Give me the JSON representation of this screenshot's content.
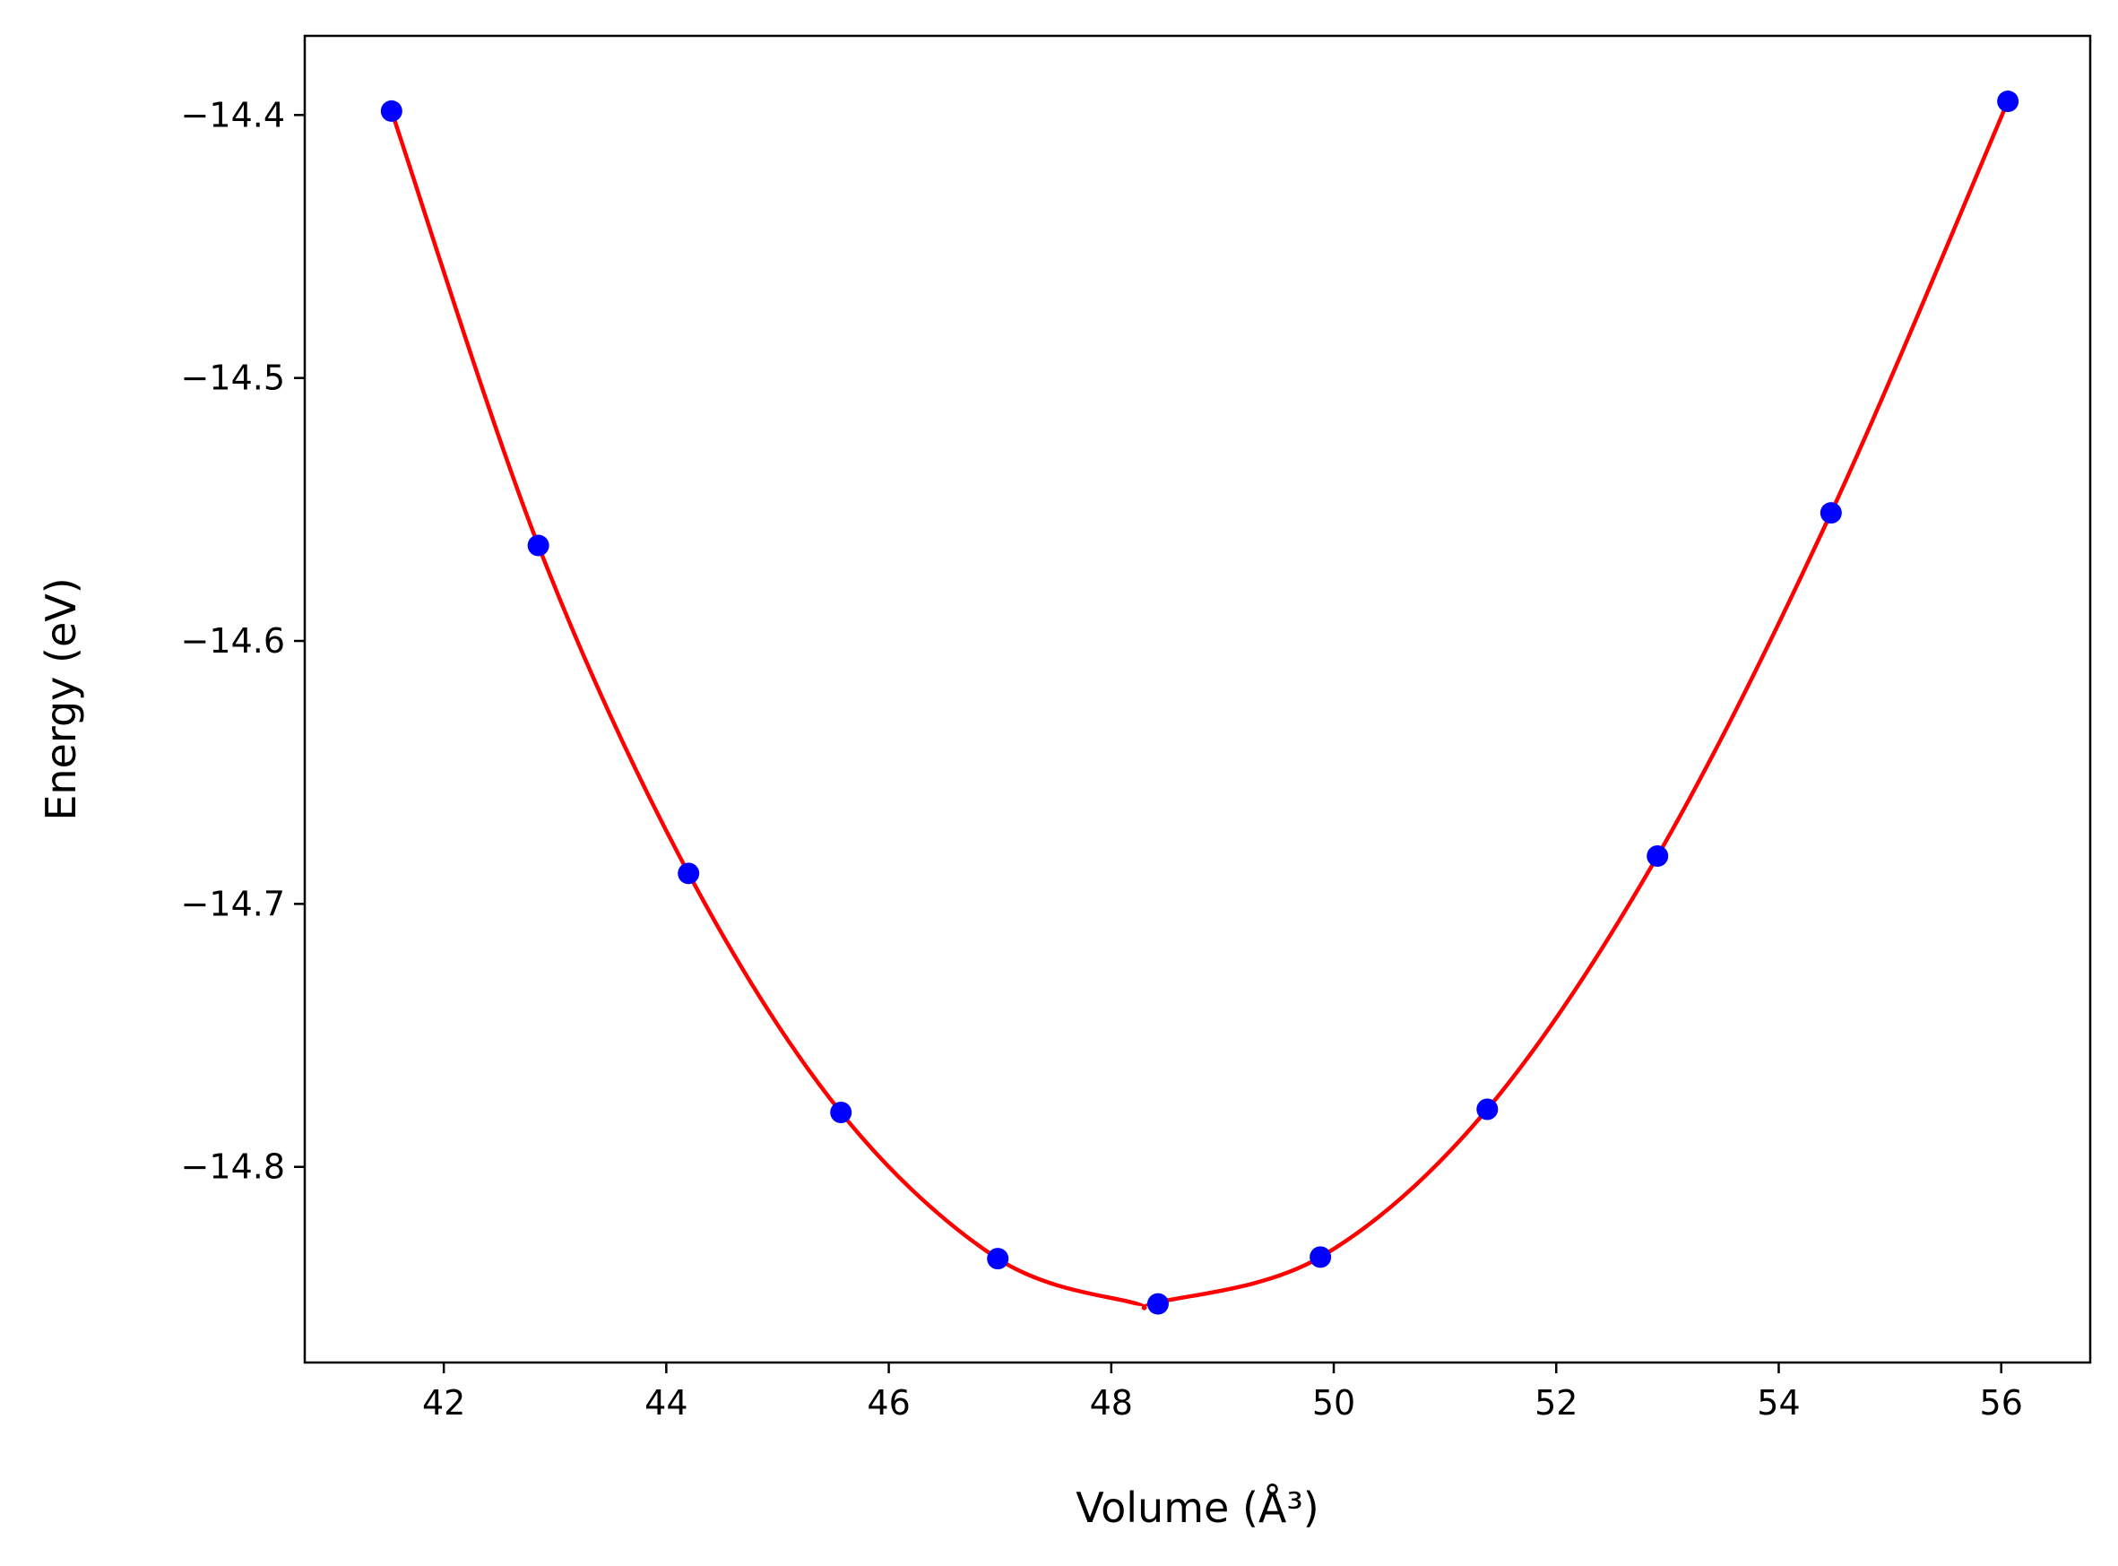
{
  "chart_data": {
    "type": "line",
    "title": "",
    "xlabel": "Volume (Å³)",
    "ylabel": "Energy (eV)",
    "xlim": [
      40.75,
      56.8
    ],
    "ylim": [
      -14.8744,
      -14.3699
    ],
    "xticks": [
      42,
      44,
      46,
      48,
      50,
      52,
      54,
      56
    ],
    "yticks": [
      -14.4,
      -14.5,
      -14.6,
      -14.7,
      -14.8
    ],
    "xtick_labels": [
      "42",
      "44",
      "46",
      "48",
      "50",
      "52",
      "54",
      "56"
    ],
    "ytick_labels": [
      "−14.4",
      "−14.5",
      "−14.6",
      "−14.7",
      "−14.8"
    ],
    "grid": false,
    "legend": "none",
    "series": [
      {
        "kind": "markers",
        "color": "#0000ff",
        "x": [
          41.53,
          42.85,
          44.2,
          45.57,
          46.98,
          48.42,
          49.88,
          51.38,
          52.91,
          54.47,
          56.06
        ],
        "y": [
          -14.3985,
          -14.5637,
          -14.6884,
          -14.7793,
          -14.8349,
          -14.8521,
          -14.8343,
          -14.7781,
          -14.6818,
          -14.5513,
          -14.3948
        ]
      },
      {
        "kind": "fit-curve",
        "color": "#ff0000",
        "x": [
          41.53,
          42.85,
          44.2,
          45.57,
          46.98,
          48.2,
          48.42,
          49.88,
          51.38,
          52.91,
          54.47,
          56.06
        ],
        "y": [
          -14.3985,
          -14.5637,
          -14.6884,
          -14.7793,
          -14.8349,
          -14.8517,
          -14.8515,
          -14.8343,
          -14.7781,
          -14.6818,
          -14.5513,
          -14.3948
        ]
      }
    ]
  }
}
